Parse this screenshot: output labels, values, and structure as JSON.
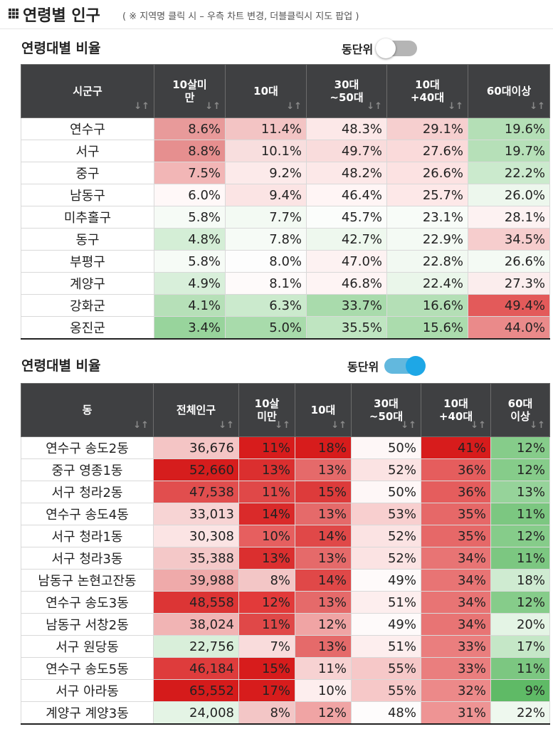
{
  "header": {
    "title": "연령별 인구",
    "subtitle": "( ※ 지역명 클릭 시 – 우측 차트 변경, 더블클릭시 지도 팝업 )"
  },
  "section1": {
    "title": "연령대별 비율",
    "toggle_label": "동단위",
    "toggle_state": "off",
    "columns": [
      "시군구",
      "10살미\n만",
      "10대",
      "30대\n~50대",
      "10대\n+40대",
      "60대이상"
    ],
    "rows": [
      {
        "name": "연수구",
        "values": [
          "8.6%",
          "11.4%",
          "48.3%",
          "29.1%",
          "19.6%"
        ],
        "colors": [
          "#e89a9a",
          "#f3c4c4",
          "#fce8e8",
          "#f6cfcf",
          "#b4dfb6"
        ]
      },
      {
        "name": "서구",
        "values": [
          "8.8%",
          "10.1%",
          "49.7%",
          "27.6%",
          "19.7%"
        ],
        "colors": [
          "#e68f8f",
          "#f8dede",
          "#f9dcdc",
          "#fadada",
          "#b6e0b8"
        ]
      },
      {
        "name": "중구",
        "values": [
          "7.5%",
          "9.2%",
          "48.2%",
          "26.6%",
          "22.2%"
        ],
        "colors": [
          "#f2b6b6",
          "#fceaea",
          "#fce8e8",
          "#fce2e2",
          "#cbeacd"
        ]
      },
      {
        "name": "남동구",
        "values": [
          "6.0%",
          "9.4%",
          "46.4%",
          "25.7%",
          "26.0%"
        ],
        "colors": [
          "#fff8f8",
          "#fbe4e4",
          "#fff5f5",
          "#fde8e8",
          "#edf7ed"
        ]
      },
      {
        "name": "미추홀구",
        "values": [
          "5.8%",
          "7.7%",
          "45.7%",
          "23.1%",
          "28.1%"
        ],
        "colors": [
          "#f6fbf6",
          "#f3faf3",
          "#fbfdfb",
          "#f8fcf8",
          "#fdf2f2"
        ]
      },
      {
        "name": "동구",
        "values": [
          "4.8%",
          "7.8%",
          "42.7%",
          "22.9%",
          "34.5%"
        ],
        "colors": [
          "#d4eed6",
          "#f6fbf6",
          "#eef8ee",
          "#f4faf4",
          "#f6cdcd"
        ]
      },
      {
        "name": "부평구",
        "values": [
          "5.8%",
          "8.0%",
          "47.0%",
          "22.8%",
          "26.6%"
        ],
        "colors": [
          "#f6fbf6",
          "#fdfdfd",
          "#fdf2f2",
          "#f2f9f2",
          "#f4faf4"
        ]
      },
      {
        "name": "계양구",
        "values": [
          "4.9%",
          "8.1%",
          "46.8%",
          "22.4%",
          "27.3%"
        ],
        "colors": [
          "#d8efda",
          "#fefafa",
          "#fef4f4",
          "#eaf6ea",
          "#fbeded"
        ]
      },
      {
        "name": "강화군",
        "values": [
          "4.1%",
          "6.3%",
          "33.7%",
          "16.6%",
          "49.4%"
        ],
        "colors": [
          "#b6e0b8",
          "#cbeacd",
          "#a9dbac",
          "#b4dfb6",
          "#e35a5a"
        ]
      },
      {
        "name": "옹진군",
        "values": [
          "3.4%",
          "5.0%",
          "35.5%",
          "15.6%",
          "44.0%"
        ],
        "colors": [
          "#98d49c",
          "#a8dbab",
          "#bfe5c1",
          "#abdcad",
          "#ea8a8a"
        ]
      }
    ]
  },
  "section2": {
    "title": "연령대별 비율",
    "toggle_label": "동단위",
    "toggle_state": "on",
    "columns": [
      "동",
      "전체인구",
      "10살\n미만",
      "10대",
      "30대\n~50대",
      "10대\n+40대",
      "60대\n이상"
    ],
    "rows": [
      {
        "name": "연수구 송도2동",
        "values": [
          "36,676",
          "11%",
          "18%",
          "50%",
          "41%",
          "12%"
        ],
        "colors": [
          "#f4c5c5",
          "#d71c1c",
          "#d71c1c",
          "#fef7f7",
          "#d71c1c",
          "#86cc8a"
        ]
      },
      {
        "name": "중구 영종1동",
        "values": [
          "52,660",
          "13%",
          "13%",
          "52%",
          "36%",
          "12%"
        ],
        "colors": [
          "#d61d1d",
          "#db2f2f",
          "#e56a6a",
          "#fbe3e3",
          "#e55d5d",
          "#86cc8a"
        ]
      },
      {
        "name": "서구 청라2동",
        "values": [
          "47,538",
          "11%",
          "15%",
          "50%",
          "36%",
          "13%"
        ],
        "colors": [
          "#e14e4e",
          "#e04848",
          "#dd3b3b",
          "#fef7f7",
          "#e55d5d",
          "#96d39a"
        ]
      },
      {
        "name": "연수구 송도4동",
        "values": [
          "33,013",
          "14%",
          "13%",
          "53%",
          "35%",
          "11%"
        ],
        "colors": [
          "#f7d4d4",
          "#da2a2a",
          "#e56a6a",
          "#f8cfcf",
          "#e66868",
          "#7cc781"
        ]
      },
      {
        "name": "서구 청라1동",
        "values": [
          "30,308",
          "10%",
          "14%",
          "52%",
          "35%",
          "12%"
        ],
        "colors": [
          "#fbe4e4",
          "#e65f5f",
          "#e04848",
          "#fbe3e3",
          "#e66868",
          "#86cc8a"
        ]
      },
      {
        "name": "서구 청라3동",
        "values": [
          "35,388",
          "13%",
          "13%",
          "52%",
          "34%",
          "11%"
        ],
        "colors": [
          "#f4c8c8",
          "#db2f2f",
          "#e56a6a",
          "#fbe3e3",
          "#e87474",
          "#7cc781"
        ]
      },
      {
        "name": "남동구 논현고잔동",
        "values": [
          "39,988",
          "8%",
          "14%",
          "49%",
          "34%",
          "18%"
        ],
        "colors": [
          "#efaaaa",
          "#f3c6c6",
          "#e04848",
          "#fefafa",
          "#e87474",
          "#cfebd1"
        ]
      },
      {
        "name": "연수구 송도3동",
        "values": [
          "48,558",
          "12%",
          "13%",
          "51%",
          "34%",
          "12%"
        ],
        "colors": [
          "#dc3535",
          "#e23a3a",
          "#e56a6a",
          "#fdeeee",
          "#e87474",
          "#86cc8a"
        ]
      },
      {
        "name": "남동구 서창2동",
        "values": [
          "38,024",
          "11%",
          "12%",
          "49%",
          "34%",
          "20%"
        ],
        "colors": [
          "#f1b4b4",
          "#e04848",
          "#f0a4a4",
          "#fefafa",
          "#e87474",
          "#e4f4e5"
        ]
      },
      {
        "name": "서구 원당동",
        "values": [
          "22,756",
          "7%",
          "13%",
          "51%",
          "33%",
          "17%"
        ],
        "colors": [
          "#d9efda",
          "#f9dcdc",
          "#e56a6a",
          "#fdeeee",
          "#ea7e7e",
          "#c5e7c7"
        ]
      },
      {
        "name": "연수구 송도5동",
        "values": [
          "46,184",
          "15%",
          "11%",
          "55%",
          "33%",
          "11%"
        ],
        "colors": [
          "#de3c3c",
          "#d71c1c",
          "#f7d2d2",
          "#f6c8c8",
          "#ea7e7e",
          "#7cc781"
        ]
      },
      {
        "name": "서구 아라동",
        "values": [
          "65,552",
          "17%",
          "10%",
          "55%",
          "32%",
          "9%"
        ],
        "colors": [
          "#d51b1b",
          "#d71c1c",
          "#fdeeee",
          "#f6c8c8",
          "#ec8989",
          "#5fba66"
        ]
      },
      {
        "name": "계양구 계양3동",
        "values": [
          "24,008",
          "8%",
          "12%",
          "48%",
          "31%",
          "22%"
        ],
        "colors": [
          "#e4f4e5",
          "#f3c6c6",
          "#f0a4a4",
          "#fefcfc",
          "#ee9494",
          "#eef8ee"
        ]
      }
    ]
  }
}
